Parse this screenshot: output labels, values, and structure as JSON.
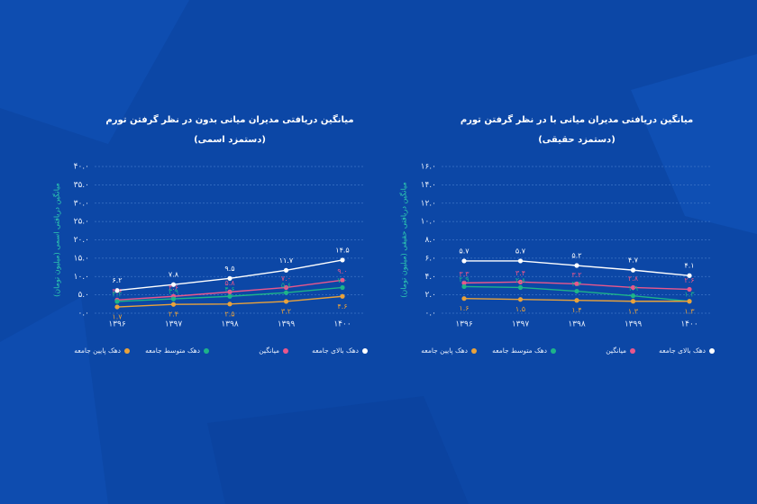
{
  "chart_data": [
    {
      "type": "line",
      "title": "میانگین دریافتی مدیران میانی بدون در نظر گرفتن تورم",
      "subtitle": "(دستمزد اسمی)",
      "y_label": "میانگین دریافتی اسمی (میلیون تومان)",
      "categories": [
        "۱۳۹۶",
        "۱۳۹۷",
        "۱۳۹۸",
        "۱۳۹۹",
        "۱۴۰۰"
      ],
      "ylim": [
        0,
        40
      ],
      "yticks": [
        {
          "value": 0,
          "label": "۰.۰"
        },
        {
          "value": 5,
          "label": "۵.۰"
        },
        {
          "value": 10,
          "label": "۱۰.۰"
        },
        {
          "value": 15,
          "label": "۱۵.۰"
        },
        {
          "value": 20,
          "label": "۲۰.۰"
        },
        {
          "value": 25,
          "label": "۲۵.۰"
        },
        {
          "value": 30,
          "label": "۳۰.۰"
        },
        {
          "value": 35,
          "label": "۳۵.۰"
        },
        {
          "value": 40,
          "label": "۴۰.۰"
        }
      ],
      "grid": true,
      "series": [
        {
          "name": "دهک بالای جامعه",
          "color": "#ffffff",
          "values": [
            6.2,
            7.8,
            9.5,
            11.7,
            14.5
          ],
          "value_labels": [
            "۶.۲",
            "۷.۸",
            "۹.۵",
            "۱۱.۷",
            "۱۴.۵"
          ]
        },
        {
          "name": "میانگین",
          "color": "#e9578c",
          "values": [
            3.6,
            4.6,
            5.8,
            7.0,
            9.0
          ],
          "value_labels": [
            "۳.۶",
            "۴.۶",
            "۵.۸",
            "۷.۰",
            "۹.۰"
          ]
        },
        {
          "name": "دهک متوسط جامعه",
          "color": "#1db489",
          "values": [
            3.2,
            3.9,
            4.6,
            5.6,
            7.0
          ],
          "value_labels": [
            "۳.۲",
            "۳.۹",
            "۴.۶",
            "۵.۶",
            "۷.۰"
          ]
        },
        {
          "name": "دهک پایین جامعه",
          "color": "#e9a23b",
          "values": [
            1.7,
            2.4,
            2.5,
            3.2,
            4.6
          ],
          "value_labels": [
            "۱.۷",
            "۲.۴",
            "۲.۵",
            "۳.۲",
            "۴.۶"
          ]
        }
      ]
    },
    {
      "type": "line",
      "title": "میانگین دریافتی مدیران میانی با در نظر گرفتن تورم",
      "subtitle": "(دستمزد حقیقی)",
      "y_label": "میانگین دریافتی حقیقی (میلیون تومان)",
      "categories": [
        "۱۳۹۶",
        "۱۳۹۷",
        "۱۳۹۸",
        "۱۳۹۹",
        "۱۴۰۰"
      ],
      "ylim": [
        0,
        16
      ],
      "yticks": [
        {
          "value": 0,
          "label": "۰.۰"
        },
        {
          "value": 2,
          "label": "۲.۰"
        },
        {
          "value": 4,
          "label": "۴.۰"
        },
        {
          "value": 6,
          "label": "۶.۰"
        },
        {
          "value": 8,
          "label": "۸.۰"
        },
        {
          "value": 10,
          "label": "۱۰.۰"
        },
        {
          "value": 12,
          "label": "۱۲.۰"
        },
        {
          "value": 14,
          "label": "۱۴.۰"
        },
        {
          "value": 16,
          "label": "۱۶.۰"
        }
      ],
      "grid": true,
      "series": [
        {
          "name": "دهک بالای جامعه",
          "color": "#ffffff",
          "values": [
            5.7,
            5.7,
            5.2,
            4.7,
            4.1
          ],
          "value_labels": [
            "۵.۷",
            "۵.۷",
            "۵.۲",
            "۴.۷",
            "۴.۱"
          ]
        },
        {
          "name": "میانگین",
          "color": "#e9578c",
          "values": [
            3.3,
            3.4,
            3.2,
            2.8,
            2.6
          ],
          "value_labels": [
            "۳.۳",
            "۳.۴",
            "۳.۲",
            "۲.۸",
            "۲.۶"
          ]
        },
        {
          "name": "دهک متوسط جامعه",
          "color": "#1db489",
          "values": [
            2.9,
            2.8,
            2.4,
            1.9,
            1.3
          ],
          "value_labels": [
            "۲.۹",
            "۲.۸",
            "۲.۴",
            "۱.۹",
            "۱.۳"
          ]
        },
        {
          "name": "دهک پایین جامعه",
          "color": "#e9a23b",
          "values": [
            1.6,
            1.5,
            1.4,
            1.3,
            1.3
          ],
          "value_labels": [
            "۱.۶",
            "۱.۵",
            "۱.۴",
            "۱.۳",
            "۱.۳"
          ]
        }
      ]
    }
  ]
}
